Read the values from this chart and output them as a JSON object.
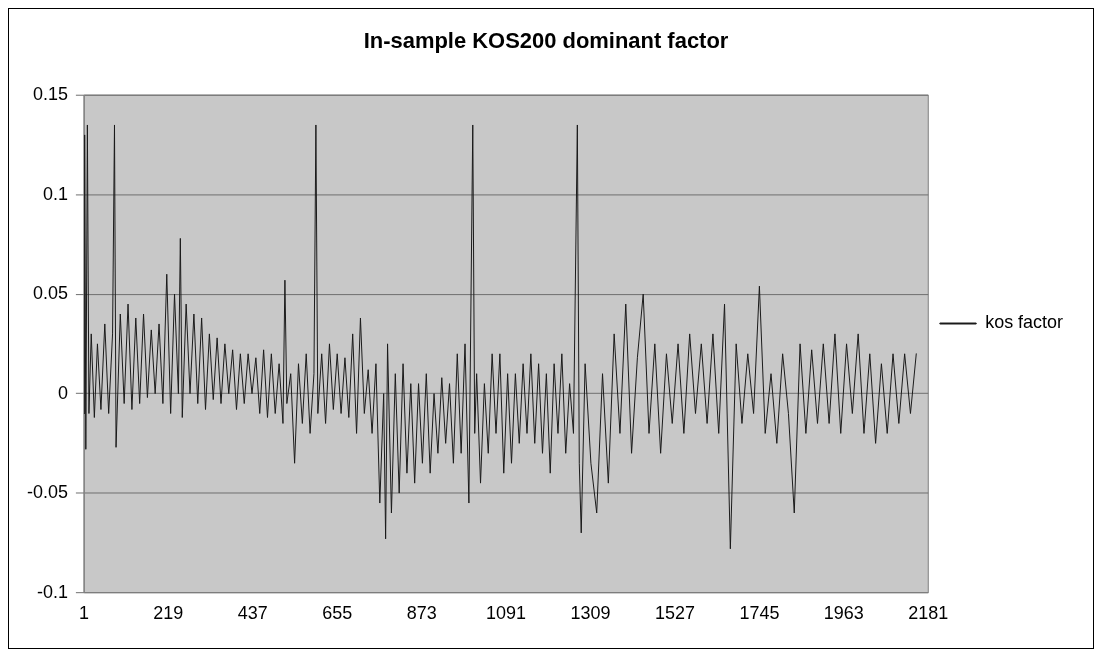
{
  "chart_data": {
    "type": "line",
    "title": "In-sample KOS200 dominant factor",
    "x": [
      1,
      3,
      6,
      10,
      14,
      20,
      28,
      36,
      45,
      55,
      65,
      75,
      80,
      84,
      95,
      105,
      115,
      125,
      135,
      145,
      155,
      165,
      175,
      185,
      195,
      205,
      215,
      225,
      235,
      245,
      250,
      255,
      265,
      275,
      285,
      295,
      305,
      315,
      325,
      335,
      345,
      355,
      365,
      375,
      385,
      395,
      405,
      415,
      425,
      435,
      445,
      455,
      465,
      475,
      485,
      495,
      505,
      515,
      520,
      525,
      535,
      545,
      555,
      565,
      575,
      585,
      595,
      600,
      605,
      615,
      625,
      635,
      645,
      655,
      665,
      675,
      685,
      695,
      705,
      715,
      725,
      735,
      745,
      755,
      765,
      775,
      780,
      785,
      795,
      805,
      815,
      825,
      835,
      845,
      855,
      865,
      875,
      885,
      895,
      905,
      915,
      925,
      935,
      945,
      955,
      965,
      975,
      985,
      995,
      1005,
      1010,
      1015,
      1025,
      1035,
      1045,
      1055,
      1065,
      1075,
      1085,
      1095,
      1105,
      1115,
      1125,
      1135,
      1145,
      1155,
      1165,
      1175,
      1185,
      1195,
      1205,
      1215,
      1225,
      1235,
      1245,
      1255,
      1265,
      1275,
      1280,
      1285,
      1295,
      1310,
      1325,
      1340,
      1355,
      1370,
      1385,
      1400,
      1415,
      1430,
      1445,
      1460,
      1475,
      1490,
      1505,
      1520,
      1535,
      1550,
      1565,
      1580,
      1595,
      1610,
      1625,
      1640,
      1655,
      1670,
      1685,
      1700,
      1715,
      1730,
      1745,
      1760,
      1775,
      1790,
      1805,
      1820,
      1835,
      1850,
      1865,
      1880,
      1895,
      1910,
      1925,
      1940,
      1955,
      1970,
      1985,
      2000,
      2015,
      2030,
      2045,
      2060,
      2075,
      2090,
      2105,
      2120,
      2135,
      2150
    ],
    "series": [
      {
        "name": "kos factor",
        "color": "#1a1a1a",
        "values": [
          -0.01,
          0.13,
          -0.028,
          0.135,
          -0.01,
          0.03,
          -0.012,
          0.025,
          -0.008,
          0.035,
          -0.01,
          0.03,
          0.135,
          -0.027,
          0.04,
          -0.005,
          0.045,
          -0.008,
          0.038,
          -0.005,
          0.04,
          -0.002,
          0.032,
          0.0,
          0.035,
          -0.005,
          0.06,
          -0.01,
          0.05,
          0.0,
          0.078,
          -0.012,
          0.045,
          0.0,
          0.04,
          -0.005,
          0.038,
          -0.008,
          0.03,
          -0.003,
          0.028,
          -0.005,
          0.025,
          0.0,
          0.022,
          -0.008,
          0.02,
          -0.005,
          0.02,
          0.0,
          0.018,
          -0.01,
          0.022,
          -0.012,
          0.02,
          -0.01,
          0.015,
          -0.015,
          0.057,
          -0.005,
          0.01,
          -0.035,
          0.015,
          -0.015,
          0.02,
          -0.02,
          0.01,
          0.135,
          -0.01,
          0.02,
          -0.015,
          0.025,
          -0.008,
          0.02,
          -0.01,
          0.018,
          -0.012,
          0.03,
          -0.02,
          0.038,
          -0.01,
          0.012,
          -0.02,
          0.015,
          -0.055,
          0.0,
          -0.073,
          0.025,
          -0.06,
          0.01,
          -0.05,
          0.015,
          -0.04,
          0.005,
          -0.045,
          0.005,
          -0.035,
          0.01,
          -0.04,
          0.0,
          -0.03,
          0.008,
          -0.025,
          0.005,
          -0.035,
          0.02,
          -0.03,
          0.025,
          -0.055,
          0.135,
          -0.02,
          0.01,
          -0.045,
          0.005,
          -0.03,
          0.02,
          -0.02,
          0.02,
          -0.04,
          0.01,
          -0.035,
          0.01,
          -0.025,
          0.015,
          -0.02,
          0.02,
          -0.025,
          0.015,
          -0.03,
          0.01,
          -0.04,
          0.015,
          -0.02,
          0.02,
          -0.03,
          0.005,
          -0.02,
          0.135,
          -0.035,
          -0.07,
          0.015,
          -0.035,
          -0.06,
          0.01,
          -0.045,
          0.03,
          -0.02,
          0.045,
          -0.03,
          0.018,
          0.05,
          -0.02,
          0.025,
          -0.03,
          0.02,
          -0.015,
          0.025,
          -0.02,
          0.03,
          -0.01,
          0.025,
          -0.015,
          0.03,
          -0.02,
          0.045,
          -0.078,
          0.025,
          -0.015,
          0.02,
          -0.01,
          0.054,
          -0.02,
          0.01,
          -0.025,
          0.02,
          -0.01,
          -0.06,
          0.025,
          -0.02,
          0.022,
          -0.015,
          0.025,
          -0.015,
          0.03,
          -0.02,
          0.025,
          -0.01,
          0.03,
          -0.02,
          0.02,
          -0.025,
          0.015,
          -0.02,
          0.02,
          -0.015,
          0.02,
          -0.01,
          0.02
        ]
      }
    ],
    "xlim": [
      1,
      2181
    ],
    "xticks": [
      1,
      219,
      437,
      655,
      873,
      1091,
      1309,
      1527,
      1745,
      1963,
      2181
    ],
    "ylim": [
      -0.1,
      0.15
    ],
    "yticks": [
      -0.1,
      -0.05,
      0,
      0.05,
      0.1,
      0.15
    ],
    "grid": "y",
    "legend": "right",
    "marker": "none",
    "line_style": "solid"
  }
}
